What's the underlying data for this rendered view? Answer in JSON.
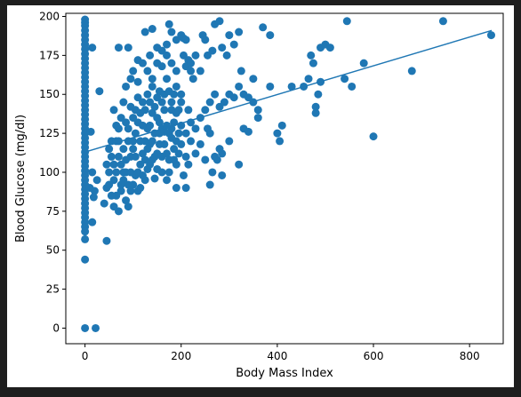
{
  "chart_data": {
    "type": "scatter",
    "title": "",
    "xlabel": "Body Mass Index",
    "ylabel": "Blood Glucose (mg/dl)",
    "xlim": [
      -40,
      870
    ],
    "ylim": [
      -10,
      202
    ],
    "xticks": [
      0,
      200,
      400,
      600,
      800
    ],
    "yticks": [
      0,
      25,
      50,
      75,
      100,
      125,
      150,
      175,
      200
    ],
    "grid": false,
    "legend": "none",
    "colors": {
      "points": "#1f77b4",
      "line": "#1f77b4",
      "figure_bg": "#ffffff",
      "outer_bg": "#1e1e1e"
    },
    "trend_line": {
      "x": [
        0,
        846
      ],
      "y": [
        113,
        191
      ]
    },
    "series": [
      {
        "points": [
          [
            0,
            198
          ],
          [
            0,
            196
          ],
          [
            0,
            194
          ],
          [
            0,
            191
          ],
          [
            0,
            188
          ],
          [
            0,
            185
          ],
          [
            0,
            182
          ],
          [
            0,
            179
          ],
          [
            0,
            176
          ],
          [
            0,
            173
          ],
          [
            0,
            170
          ],
          [
            0,
            167
          ],
          [
            0,
            164
          ],
          [
            0,
            161
          ],
          [
            0,
            158
          ],
          [
            0,
            155
          ],
          [
            0,
            152
          ],
          [
            0,
            149
          ],
          [
            0,
            146
          ],
          [
            0,
            143
          ],
          [
            0,
            140
          ],
          [
            0,
            137
          ],
          [
            0,
            134
          ],
          [
            0,
            131
          ],
          [
            0,
            128
          ],
          [
            0,
            125
          ],
          [
            0,
            122
          ],
          [
            0,
            119
          ],
          [
            0,
            116
          ],
          [
            0,
            113
          ],
          [
            0,
            110
          ],
          [
            0,
            107
          ],
          [
            0,
            104
          ],
          [
            0,
            101
          ],
          [
            0,
            98
          ],
          [
            0,
            95
          ],
          [
            0,
            92
          ],
          [
            0,
            89
          ],
          [
            0,
            86
          ],
          [
            0,
            83
          ],
          [
            0,
            80
          ],
          [
            0,
            77
          ],
          [
            0,
            74
          ],
          [
            0,
            71
          ],
          [
            0,
            68
          ],
          [
            0,
            65
          ],
          [
            0,
            62
          ],
          [
            0,
            57
          ],
          [
            0,
            44
          ],
          [
            0,
            0
          ],
          [
            22,
            0
          ],
          [
            15,
            180
          ],
          [
            30,
            152
          ],
          [
            12,
            126
          ],
          [
            15,
            100
          ],
          [
            20,
            88
          ],
          [
            15,
            68
          ],
          [
            45,
            56
          ],
          [
            18,
            84
          ],
          [
            25,
            95
          ],
          [
            10,
            90
          ],
          [
            40,
            80
          ],
          [
            45,
            90
          ],
          [
            50,
            100
          ],
          [
            55,
            110
          ],
          [
            60,
            95
          ],
          [
            65,
            85
          ],
          [
            70,
            75
          ],
          [
            75,
            105
          ],
          [
            80,
            115
          ],
          [
            85,
            100
          ],
          [
            90,
            92
          ],
          [
            95,
            110
          ],
          [
            100,
            120
          ],
          [
            105,
            98
          ],
          [
            110,
            88
          ],
          [
            115,
            105
          ],
          [
            120,
            112
          ],
          [
            125,
            95
          ],
          [
            130,
            102
          ],
          [
            135,
            118
          ],
          [
            140,
            108
          ],
          [
            145,
            96
          ],
          [
            150,
            112
          ],
          [
            155,
            125
          ],
          [
            160,
            100
          ],
          [
            165,
            118
          ],
          [
            170,
            95
          ],
          [
            175,
            108
          ],
          [
            180,
            122
          ],
          [
            185,
            115
          ],
          [
            190,
            105
          ],
          [
            195,
            125
          ],
          [
            200,
            118
          ],
          [
            45,
            105
          ],
          [
            50,
            92
          ],
          [
            55,
            120
          ],
          [
            60,
            78
          ],
          [
            65,
            100
          ],
          [
            70,
            110
          ],
          [
            75,
            88
          ],
          [
            80,
            95
          ],
          [
            85,
            82
          ],
          [
            90,
            78
          ],
          [
            95,
            100
          ],
          [
            100,
            92
          ],
          [
            105,
            110
          ],
          [
            110,
            100
          ],
          [
            115,
            90
          ],
          [
            120,
            98
          ],
          [
            125,
            120
          ],
          [
            130,
            128
          ],
          [
            135,
            105
          ],
          [
            140,
            120
          ],
          [
            145,
            110
          ],
          [
            150,
            102
          ],
          [
            155,
            118
          ],
          [
            160,
            110
          ],
          [
            165,
            126
          ],
          [
            170,
            112
          ],
          [
            175,
            100
          ],
          [
            180,
            128
          ],
          [
            185,
            108
          ],
          [
            190,
            120
          ],
          [
            50,
            115
          ],
          [
            55,
            85
          ],
          [
            60,
            105
          ],
          [
            65,
            120
          ],
          [
            70,
            128
          ],
          [
            75,
            92
          ],
          [
            80,
            100
          ],
          [
            85,
            108
          ],
          [
            90,
            120
          ],
          [
            95,
            88
          ],
          [
            100,
            115
          ],
          [
            105,
            125
          ],
          [
            110,
            132
          ],
          [
            115,
            120
          ],
          [
            120,
            130
          ],
          [
            125,
            108
          ],
          [
            130,
            115
          ],
          [
            135,
            130
          ],
          [
            140,
            138
          ],
          [
            145,
            125
          ],
          [
            150,
            135
          ],
          [
            155,
            132
          ],
          [
            160,
            128
          ],
          [
            165,
            140
          ],
          [
            170,
            130
          ],
          [
            175,
            125
          ],
          [
            180,
            140
          ],
          [
            185,
            132
          ],
          [
            190,
            138
          ],
          [
            195,
            112
          ],
          [
            60,
            140
          ],
          [
            65,
            130
          ],
          [
            70,
            120
          ],
          [
            75,
            135
          ],
          [
            80,
            145
          ],
          [
            85,
            132
          ],
          [
            90,
            128
          ],
          [
            95,
            142
          ],
          [
            100,
            135
          ],
          [
            105,
            140
          ],
          [
            110,
            148
          ],
          [
            115,
            138
          ],
          [
            120,
            145
          ],
          [
            125,
            140
          ],
          [
            130,
            150
          ],
          [
            135,
            145
          ],
          [
            140,
            155
          ],
          [
            145,
            142
          ],
          [
            150,
            148
          ],
          [
            155,
            152
          ],
          [
            160,
            145
          ],
          [
            165,
            150
          ],
          [
            170,
            160
          ],
          [
            175,
            152
          ],
          [
            180,
            145
          ],
          [
            185,
            150
          ],
          [
            190,
            155
          ],
          [
            195,
            140
          ],
          [
            200,
            145
          ],
          [
            85,
            155
          ],
          [
            95,
            160
          ],
          [
            100,
            165
          ],
          [
            110,
            158
          ],
          [
            120,
            170
          ],
          [
            130,
            165
          ],
          [
            140,
            160
          ],
          [
            150,
            170
          ],
          [
            160,
            168
          ],
          [
            170,
            175
          ],
          [
            180,
            170
          ],
          [
            190,
            165
          ],
          [
            200,
            150
          ],
          [
            205,
            175
          ],
          [
            210,
            168
          ],
          [
            215,
            172
          ],
          [
            220,
            165
          ],
          [
            225,
            160
          ],
          [
            70,
            180
          ],
          [
            90,
            180
          ],
          [
            110,
            172
          ],
          [
            125,
            190
          ],
          [
            135,
            175
          ],
          [
            140,
            192
          ],
          [
            150,
            180
          ],
          [
            160,
            178
          ],
          [
            170,
            182
          ],
          [
            175,
            195
          ],
          [
            180,
            190
          ],
          [
            190,
            185
          ],
          [
            200,
            188
          ],
          [
            205,
            186
          ],
          [
            210,
            185
          ],
          [
            220,
            170
          ],
          [
            230,
            175
          ],
          [
            240,
            165
          ],
          [
            245,
            188
          ],
          [
            250,
            185
          ],
          [
            200,
            130
          ],
          [
            210,
            125
          ],
          [
            215,
            140
          ],
          [
            220,
            132
          ],
          [
            230,
            128
          ],
          [
            240,
            135
          ],
          [
            250,
            140
          ],
          [
            255,
            128
          ],
          [
            260,
            145
          ],
          [
            270,
            150
          ],
          [
            280,
            142
          ],
          [
            290,
            145
          ],
          [
            300,
            150
          ],
          [
            310,
            148
          ],
          [
            320,
            155
          ],
          [
            330,
            150
          ],
          [
            340,
            148
          ],
          [
            350,
            145
          ],
          [
            360,
            140
          ],
          [
            205,
            98
          ],
          [
            210,
            110
          ],
          [
            215,
            105
          ],
          [
            220,
            120
          ],
          [
            230,
            112
          ],
          [
            240,
            118
          ],
          [
            250,
            108
          ],
          [
            260,
            125
          ],
          [
            265,
            100
          ],
          [
            270,
            110
          ],
          [
            280,
            115
          ],
          [
            285,
            98
          ],
          [
            300,
            120
          ],
          [
            320,
            105
          ],
          [
            330,
            128
          ],
          [
            340,
            126
          ],
          [
            190,
            90
          ],
          [
            210,
            90
          ],
          [
            260,
            92
          ],
          [
            275,
            108
          ],
          [
            285,
            112
          ],
          [
            255,
            175
          ],
          [
            265,
            178
          ],
          [
            270,
            195
          ],
          [
            280,
            197
          ],
          [
            285,
            180
          ],
          [
            295,
            175
          ],
          [
            300,
            188
          ],
          [
            310,
            182
          ],
          [
            320,
            190
          ],
          [
            325,
            165
          ],
          [
            350,
            160
          ],
          [
            360,
            135
          ],
          [
            370,
            193
          ],
          [
            385,
            188
          ],
          [
            385,
            155
          ],
          [
            400,
            125
          ],
          [
            405,
            120
          ],
          [
            410,
            130
          ],
          [
            430,
            155
          ],
          [
            455,
            155
          ],
          [
            465,
            160
          ],
          [
            470,
            175
          ],
          [
            475,
            170
          ],
          [
            480,
            138
          ],
          [
            480,
            142
          ],
          [
            485,
            150
          ],
          [
            490,
            158
          ],
          [
            490,
            180
          ],
          [
            500,
            182
          ],
          [
            510,
            180
          ],
          [
            540,
            160
          ],
          [
            545,
            197
          ],
          [
            555,
            155
          ],
          [
            580,
            170
          ],
          [
            600,
            123
          ],
          [
            680,
            165
          ],
          [
            745,
            197
          ],
          [
            845,
            188
          ]
        ]
      }
    ]
  }
}
